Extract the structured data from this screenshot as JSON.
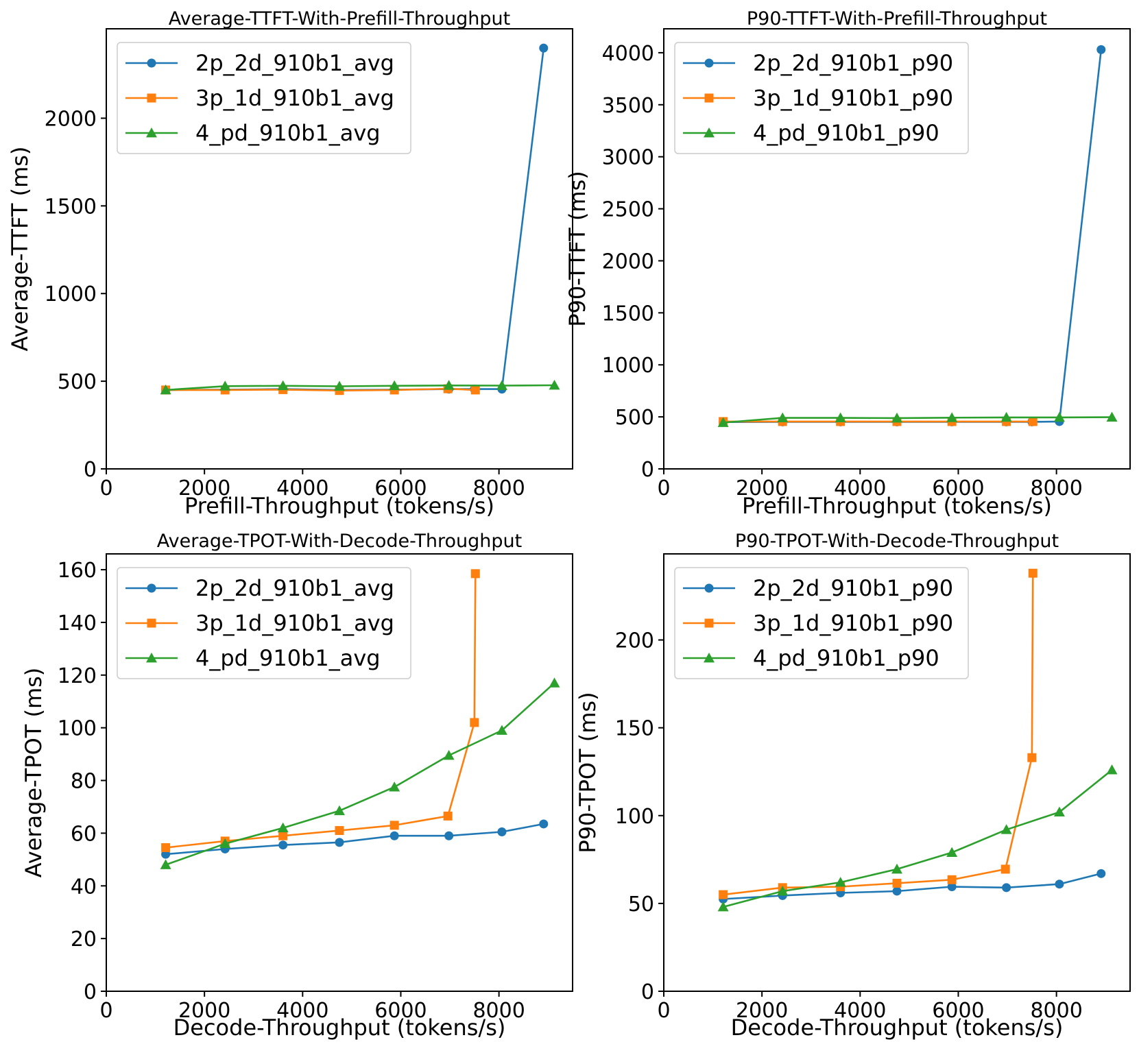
{
  "colors": {
    "series1": "#1f77b4",
    "series2": "#ff7f0e",
    "series3": "#2ca02c"
  },
  "chart_data": [
    {
      "type": "line",
      "title": "Average-TTFT-With-Prefill-Throughput",
      "xlabel": "Prefill-Throughput (tokens/s)",
      "ylabel": "Average-TTFT (ms)",
      "xlim": [
        0,
        9500
      ],
      "ylim": [
        0,
        2510
      ],
      "xticks": [
        0,
        2000,
        4000,
        6000,
        8000
      ],
      "yticks": [
        0,
        500,
        1000,
        1500,
        2000
      ],
      "legend": "top-left",
      "grid": false,
      "series": [
        {
          "name": "2p_2d_910b1_avg",
          "marker": "circle",
          "color": "#1f77b4",
          "x": [
            1210,
            2420,
            3600,
            4750,
            5870,
            6980,
            7500,
            8060,
            8910
          ],
          "y": [
            450,
            452,
            455,
            450,
            452,
            455,
            455,
            455,
            2400
          ]
        },
        {
          "name": "3p_1d_910b1_avg",
          "marker": "square",
          "color": "#ff7f0e",
          "x": [
            1210,
            2420,
            3600,
            4750,
            5870,
            6960,
            7520
          ],
          "y": [
            450,
            450,
            452,
            447,
            450,
            457,
            450
          ]
        },
        {
          "name": "4_pd_910b1_avg",
          "marker": "triangle",
          "color": "#2ca02c",
          "x": [
            1210,
            2420,
            3600,
            4750,
            5870,
            6980,
            8060,
            9130
          ],
          "y": [
            450,
            472,
            474,
            471,
            474,
            476,
            475,
            477
          ]
        }
      ]
    },
    {
      "type": "line",
      "title": "P90-TTFT-With-Prefill-Throughput",
      "xlabel": "Prefill-Throughput (tokens/s)",
      "ylabel": "P90-TTFT (ms)",
      "xlim": [
        0,
        9500
      ],
      "ylim": [
        0,
        4230
      ],
      "xticks": [
        0,
        2000,
        4000,
        6000,
        8000
      ],
      "yticks": [
        0,
        500,
        1000,
        1500,
        2000,
        2500,
        3000,
        3500,
        4000
      ],
      "legend": "top-left",
      "grid": false,
      "series": [
        {
          "name": "2p_2d_910b1_p90",
          "marker": "circle",
          "color": "#1f77b4",
          "x": [
            1210,
            2420,
            3600,
            4750,
            5870,
            6980,
            7500,
            8060,
            8910
          ],
          "y": [
            450,
            452,
            452,
            452,
            452,
            452,
            452,
            455,
            4030
          ]
        },
        {
          "name": "3p_1d_910b1_p90",
          "marker": "square",
          "color": "#ff7f0e",
          "x": [
            1210,
            2420,
            3600,
            4750,
            5870,
            6980,
            7520
          ],
          "y": [
            455,
            455,
            455,
            455,
            455,
            455,
            455
          ]
        },
        {
          "name": "4_pd_910b1_p90",
          "marker": "triangle",
          "color": "#2ca02c",
          "x": [
            1210,
            2420,
            3600,
            4750,
            5870,
            6980,
            8060,
            9130
          ],
          "y": [
            445,
            490,
            490,
            488,
            492,
            495,
            495,
            497
          ]
        }
      ]
    },
    {
      "type": "line",
      "title": "Average-TPOT-With-Decode-Throughput",
      "xlabel": "Decode-Throughput (tokens/s)",
      "ylabel": "Average-TPOT (ms)",
      "xlim": [
        0,
        9500
      ],
      "ylim": [
        0,
        166
      ],
      "xticks": [
        0,
        2000,
        4000,
        6000,
        8000
      ],
      "yticks": [
        0,
        20,
        40,
        60,
        80,
        100,
        120,
        140,
        160
      ],
      "legend": "top-left",
      "grid": false,
      "series": [
        {
          "name": "2p_2d_910b1_avg",
          "marker": "circle",
          "color": "#1f77b4",
          "x": [
            1210,
            2420,
            3600,
            4750,
            5870,
            6980,
            8060,
            8910
          ],
          "y": [
            52,
            54,
            55.5,
            56.5,
            59,
            59,
            60.5,
            63.5
          ]
        },
        {
          "name": "3p_1d_910b1_avg",
          "marker": "square",
          "color": "#ff7f0e",
          "x": [
            1210,
            2420,
            3600,
            4750,
            5870,
            6960,
            7500,
            7520
          ],
          "y": [
            54.5,
            57,
            59,
            61,
            63,
            66.5,
            102,
            158.5
          ]
        },
        {
          "name": "4_pd_910b1_avg",
          "marker": "triangle",
          "color": "#2ca02c",
          "x": [
            1210,
            2420,
            3600,
            4750,
            5870,
            6980,
            8060,
            9130
          ],
          "y": [
            48,
            56,
            62,
            68.5,
            77.5,
            89.5,
            99,
            117
          ]
        }
      ]
    },
    {
      "type": "line",
      "title": "P90-TPOT-With-Decode-Throughput",
      "xlabel": "Decode-Throughput (tokens/s)",
      "ylabel": "P90-TPOT (ms)",
      "xlim": [
        0,
        9500
      ],
      "ylim": [
        0,
        249
      ],
      "xticks": [
        0,
        2000,
        4000,
        6000,
        8000
      ],
      "yticks": [
        0,
        50,
        100,
        150,
        200
      ],
      "legend": "top-left",
      "grid": false,
      "series": [
        {
          "name": "2p_2d_910b1_p90",
          "marker": "circle",
          "color": "#1f77b4",
          "x": [
            1210,
            2420,
            3600,
            4750,
            5870,
            6980,
            8060,
            8910
          ],
          "y": [
            52.5,
            54.5,
            56,
            57,
            59.5,
            59,
            61,
            67
          ]
        },
        {
          "name": "3p_1d_910b1_p90",
          "marker": "square",
          "color": "#ff7f0e",
          "x": [
            1210,
            2420,
            3600,
            4750,
            5870,
            6960,
            7500,
            7520
          ],
          "y": [
            55,
            59,
            59.5,
            61.5,
            63.5,
            69.5,
            133,
            238
          ]
        },
        {
          "name": "4_pd_910b1_p90",
          "marker": "triangle",
          "color": "#2ca02c",
          "x": [
            1210,
            2420,
            3600,
            4750,
            5870,
            6980,
            8060,
            9130
          ],
          "y": [
            48,
            57,
            62,
            69.5,
            79,
            92,
            102,
            126
          ]
        }
      ]
    }
  ]
}
